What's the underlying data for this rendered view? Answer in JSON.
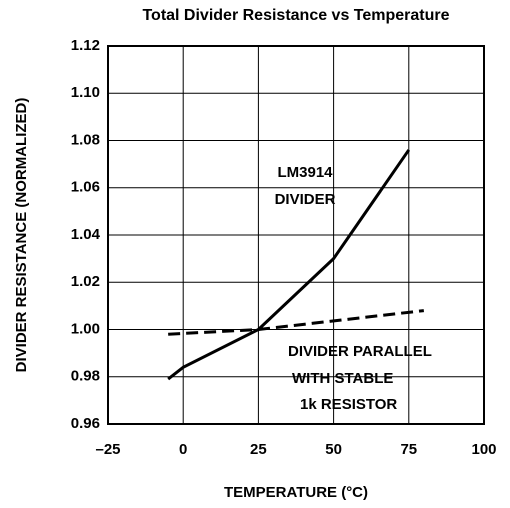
{
  "chart_data": {
    "type": "line",
    "title": "Total Divider Resistance vs Temperature",
    "xlabel": "TEMPERATURE (°C)",
    "ylabel": "DIVIDER RESISTANCE (NORMALIZED)",
    "xlim": [
      -25,
      100
    ],
    "xticks": [
      {
        "value": -25,
        "label": "–25"
      },
      0,
      25,
      50,
      75,
      100
    ],
    "ylim": [
      0.96,
      1.12
    ],
    "yticks": [
      0.96,
      0.98,
      {
        "value": 1.0,
        "label": "1.00"
      },
      1.02,
      1.04,
      1.06,
      1.08,
      {
        "value": 1.1,
        "label": "1.10"
      },
      1.12
    ],
    "grid": true,
    "series": [
      {
        "color": "#000000",
        "dashed": false,
        "x": [
          -5,
          0,
          25,
          50,
          75
        ],
        "values": [
          0.979,
          0.984,
          1.0,
          1.03,
          1.076
        ]
      },
      {
        "color": "#000000",
        "dashed": true,
        "x": [
          -5,
          25,
          80
        ],
        "values": [
          0.998,
          1.0,
          1.008
        ]
      }
    ],
    "annotations": [
      "LM3914",
      "DIVIDER",
      "DIVIDER PARALLEL",
      "WITH STABLE",
      "1k RESISTOR"
    ]
  }
}
